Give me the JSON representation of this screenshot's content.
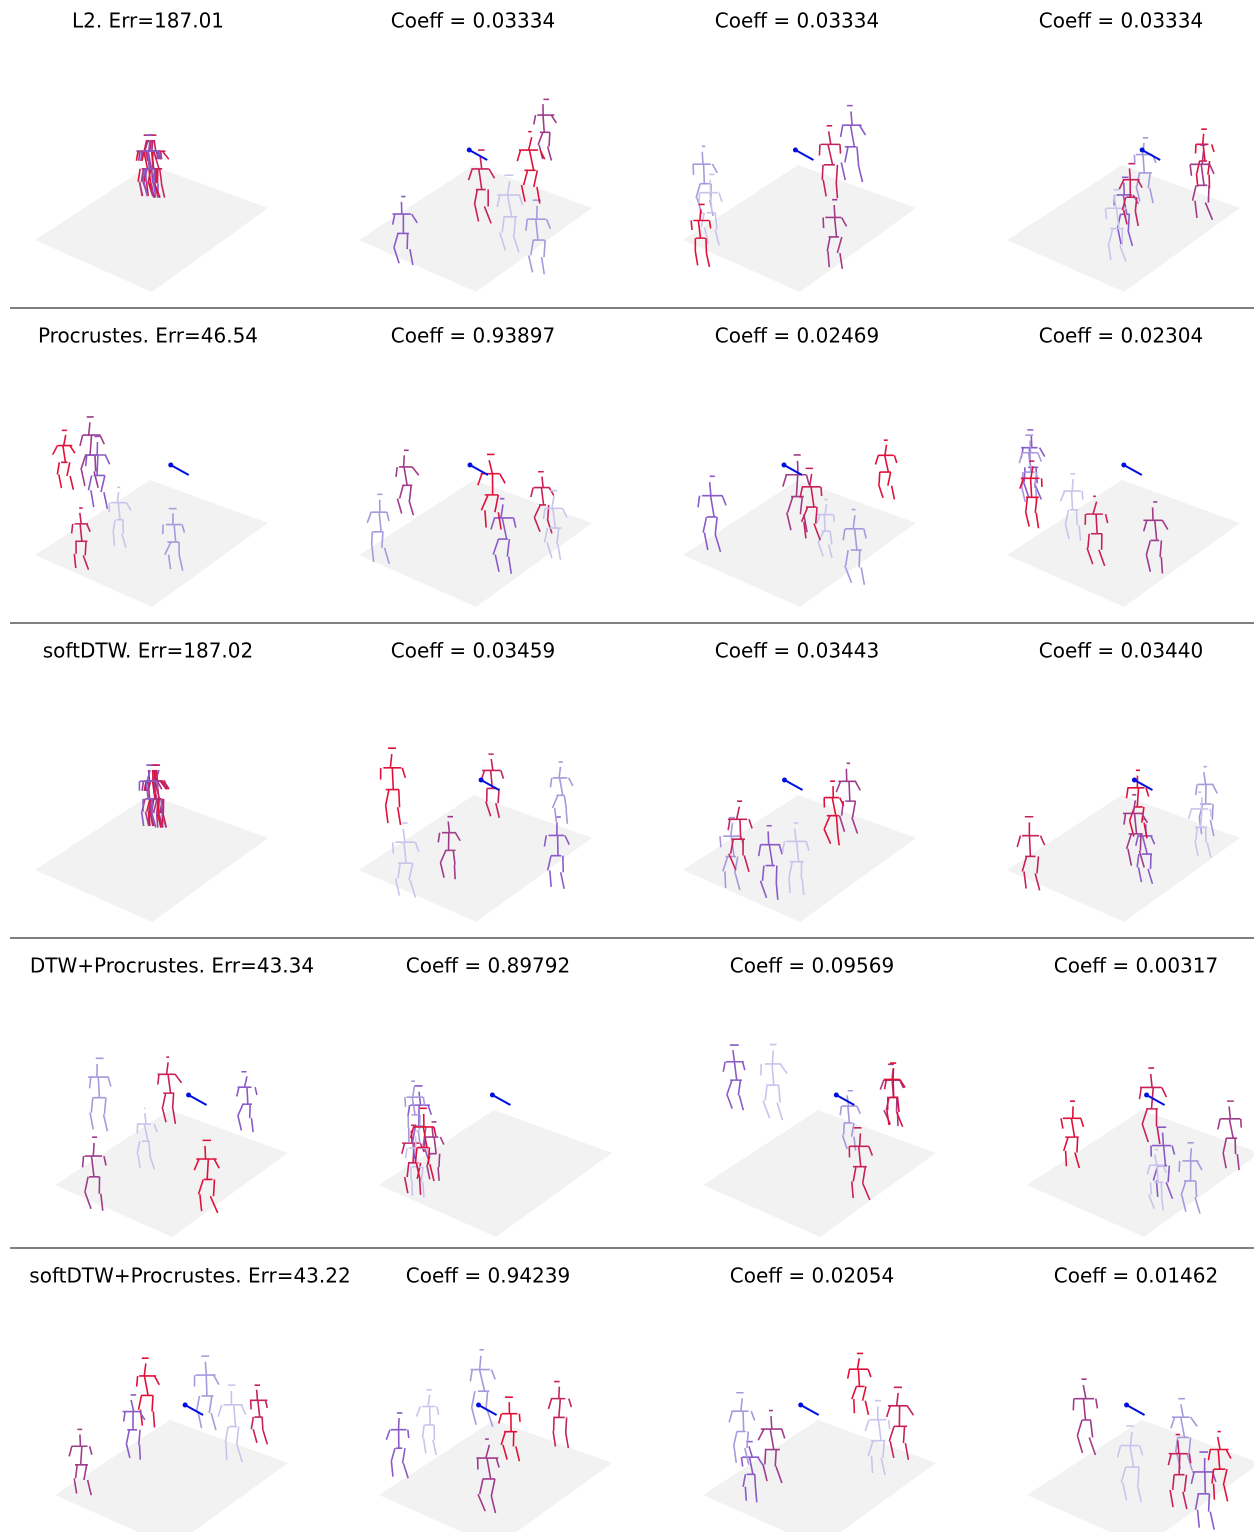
{
  "rows": [
    {
      "title": "L2. Err=187.01",
      "panels": [
        "Coeff = 0.03334",
        "Coeff = 0.03334",
        "Coeff = 0.03334"
      ]
    },
    {
      "title": "Procrustes. Err=46.54",
      "panels": [
        "Coeff = 0.93897",
        "Coeff = 0.02469",
        "Coeff = 0.02304"
      ]
    },
    {
      "title": "softDTW. Err=187.02",
      "panels": [
        "Coeff = 0.03459",
        "Coeff = 0.03443",
        "Coeff = 0.03440"
      ]
    },
    {
      "title": "DTW+Procrustes. Err=43.34",
      "panels": [
        "Coeff = 0.89792",
        "Coeff = 0.09569",
        "Coeff = 0.00317"
      ]
    },
    {
      "title": "softDTW+Procrustes. Err=43.22",
      "panels": [
        "Coeff = 0.94239",
        "Coeff = 0.02054",
        "Coeff = 0.01462"
      ]
    }
  ]
}
